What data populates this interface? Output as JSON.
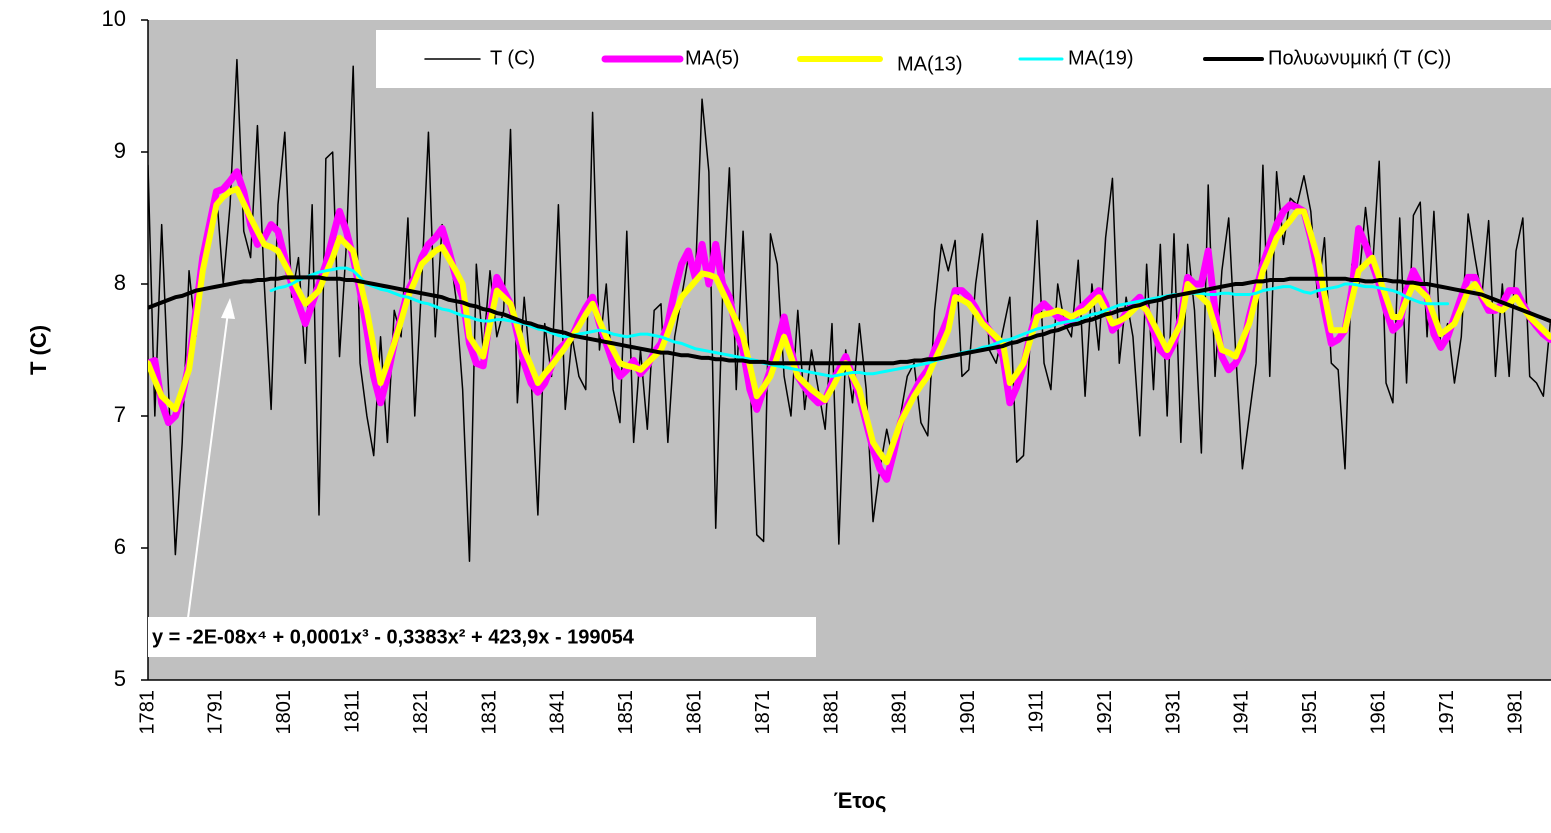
{
  "chart_data": {
    "type": "line",
    "y_label": "T (C)",
    "x_label": "Έτος",
    "annotation": "y = -2E-08x⁴ + 0,0001x³ - 0,3383x² + 423,9x - 199054",
    "legend": "top",
    "grid": false,
    "plot_background": "#c0c0c0",
    "ylim": [
      5,
      10
    ],
    "yticks": [
      5,
      6,
      7,
      8,
      9,
      10
    ],
    "categories": [
      "1781",
      null,
      null,
      null,
      null,
      null,
      null,
      null,
      null,
      null,
      "1791",
      null,
      null,
      null,
      null,
      null,
      null,
      null,
      null,
      null,
      "1801",
      null,
      null,
      null,
      null,
      null,
      null,
      null,
      null,
      null,
      "1811",
      null,
      null,
      null,
      null,
      null,
      null,
      null,
      null,
      null,
      "1821",
      null,
      null,
      null,
      null,
      null,
      null,
      null,
      null,
      null,
      "1831",
      null,
      null,
      null,
      null,
      null,
      null,
      null,
      null,
      null,
      "1841",
      null,
      null,
      null,
      null,
      null,
      null,
      null,
      null,
      null,
      "1851",
      null,
      null,
      null,
      null,
      null,
      null,
      null,
      null,
      null,
      "1861",
      null,
      null,
      null,
      null,
      null,
      null,
      null,
      null,
      null,
      "1871",
      null,
      null,
      null,
      null,
      null,
      null,
      null,
      null,
      null,
      "1881",
      null,
      null,
      null,
      null,
      null,
      null,
      null,
      null,
      null,
      "1891",
      null,
      null,
      null,
      null,
      null,
      null,
      null,
      null,
      null,
      "1901",
      null,
      null,
      null,
      null,
      null,
      null,
      null,
      null,
      null,
      "1911",
      null,
      null,
      null,
      null,
      null,
      null,
      null,
      null,
      null,
      "1921",
      null,
      null,
      null,
      null,
      null,
      null,
      null,
      null,
      null,
      "1931",
      null,
      null,
      null,
      null,
      null,
      null,
      null,
      null,
      null,
      "1941",
      null,
      null,
      null,
      null,
      null,
      null,
      null,
      null,
      null,
      "1951",
      null,
      null,
      null,
      null,
      null,
      null,
      null,
      null,
      null,
      "1961",
      null,
      null,
      null,
      null,
      null,
      null,
      null,
      null,
      null,
      "1971",
      null,
      null,
      null,
      null,
      null,
      null,
      null,
      null,
      null,
      "1981",
      null,
      null,
      null,
      null,
      null
    ],
    "series": [
      {
        "name": "T (C)",
        "color": "#000000",
        "width": 1.5,
        "values": [
          8.9,
          7.0,
          8.45,
          7.2,
          5.95,
          6.8,
          8.1,
          7.6,
          8.2,
          8.5,
          8.7,
          8.0,
          8.6,
          9.7,
          8.4,
          8.2,
          9.2,
          8.0,
          7.05,
          8.6,
          9.15,
          7.9,
          8.2,
          7.4,
          8.6,
          6.25,
          8.95,
          9.0,
          7.45,
          8.3,
          9.65,
          7.4,
          7.0,
          6.7,
          7.6,
          6.8,
          7.8,
          7.6,
          8.5,
          7.0,
          8.0,
          9.15,
          7.6,
          8.45,
          8.3,
          7.9,
          7.2,
          5.9,
          8.15,
          7.5,
          8.1,
          7.6,
          7.8,
          9.17,
          7.1,
          7.9,
          7.3,
          6.25,
          7.7,
          7.3,
          8.6,
          7.05,
          7.6,
          7.3,
          7.2,
          9.3,
          7.5,
          8.0,
          7.2,
          6.95,
          8.4,
          6.8,
          7.5,
          6.9,
          7.8,
          7.85,
          6.8,
          7.6,
          7.9,
          8.2,
          8.0,
          9.4,
          8.85,
          6.15,
          7.9,
          8.88,
          7.2,
          8.4,
          7.3,
          6.1,
          6.05,
          8.38,
          8.15,
          7.3,
          7.0,
          7.8,
          7.05,
          7.5,
          7.2,
          6.9,
          7.7,
          6.03,
          7.5,
          7.1,
          7.7,
          7.2,
          6.2,
          6.6,
          6.9,
          6.65,
          7.0,
          7.3,
          7.4,
          6.95,
          6.85,
          7.8,
          8.3,
          8.1,
          8.33,
          7.3,
          7.35,
          8.0,
          8.38,
          7.5,
          7.4,
          7.65,
          7.9,
          6.65,
          6.7,
          7.6,
          8.48,
          7.4,
          7.2,
          8.0,
          7.7,
          7.6,
          8.18,
          7.15,
          8.0,
          7.5,
          8.35,
          8.8,
          7.4,
          7.9,
          7.6,
          6.85,
          8.15,
          7.2,
          8.3,
          7.0,
          8.38,
          6.8,
          8.3,
          7.8,
          6.72,
          8.75,
          7.3,
          8.1,
          8.5,
          7.5,
          6.6,
          7.0,
          7.4,
          8.9,
          7.3,
          8.85,
          8.3,
          8.65,
          8.6,
          8.82,
          8.55,
          7.9,
          8.35,
          7.4,
          7.35,
          6.6,
          8.15,
          8.0,
          8.58,
          8.1,
          8.93,
          7.25,
          7.1,
          8.5,
          7.25,
          8.52,
          8.62,
          7.6,
          8.55,
          7.5,
          7.7,
          7.25,
          7.6,
          8.53,
          8.2,
          7.9,
          8.48,
          7.3,
          8.0,
          7.3,
          8.25,
          8.5,
          7.3,
          7.25,
          7.15,
          7.7
        ]
      },
      {
        "name": "MA(5)",
        "color": "#ff00ff",
        "width": 7,
        "values": [
          7.4,
          7.42,
          7.1,
          6.95,
          7.0,
          7.15,
          7.4,
          7.8,
          8.2,
          8.45,
          8.7,
          8.72,
          8.78,
          8.85,
          8.7,
          8.45,
          8.3,
          8.35,
          8.45,
          8.4,
          8.2,
          8.0,
          7.85,
          7.7,
          7.85,
          8.0,
          8.15,
          8.35,
          8.55,
          8.4,
          8.2,
          7.95,
          7.65,
          7.3,
          7.1,
          7.3,
          7.55,
          7.75,
          7.95,
          8.05,
          8.2,
          8.3,
          8.35,
          8.42,
          8.25,
          8.05,
          7.9,
          7.55,
          7.4,
          7.38,
          7.75,
          8.05,
          7.95,
          7.85,
          7.62,
          7.4,
          7.25,
          7.18,
          7.25,
          7.38,
          7.5,
          7.55,
          7.6,
          7.72,
          7.82,
          7.9,
          7.7,
          7.55,
          7.4,
          7.3,
          7.35,
          7.42,
          7.32,
          7.38,
          7.48,
          7.55,
          7.7,
          7.95,
          8.15,
          8.25,
          8.05,
          8.3,
          8.0,
          8.3,
          8.0,
          7.9,
          7.65,
          7.5,
          7.2,
          7.05,
          7.2,
          7.35,
          7.55,
          7.75,
          7.5,
          7.3,
          7.22,
          7.15,
          7.1,
          7.12,
          7.25,
          7.35,
          7.45,
          7.3,
          7.15,
          6.95,
          6.75,
          6.6,
          6.52,
          6.72,
          6.95,
          7.08,
          7.18,
          7.28,
          7.35,
          7.5,
          7.62,
          7.75,
          7.95,
          7.95,
          7.9,
          7.82,
          7.72,
          7.65,
          7.58,
          7.45,
          7.1,
          7.22,
          7.38,
          7.62,
          7.8,
          7.85,
          7.8,
          7.75,
          7.72,
          7.7,
          7.8,
          7.85,
          7.9,
          7.95,
          7.85,
          7.65,
          7.7,
          7.78,
          7.85,
          7.9,
          7.8,
          7.65,
          7.5,
          7.45,
          7.55,
          7.75,
          8.05,
          8.0,
          8.0,
          8.25,
          7.8,
          7.45,
          7.35,
          7.4,
          7.5,
          7.75,
          7.95,
          8.15,
          8.3,
          8.45,
          8.55,
          8.6,
          8.58,
          8.55,
          8.35,
          8.1,
          7.8,
          7.55,
          7.58,
          7.65,
          7.95,
          8.42,
          8.3,
          8.15,
          8.0,
          7.8,
          7.65,
          7.7,
          7.95,
          8.1,
          8.0,
          7.9,
          7.62,
          7.52,
          7.6,
          7.75,
          7.9,
          8.05,
          8.05,
          7.9,
          7.8,
          7.8,
          7.85,
          7.95,
          7.95,
          7.85,
          7.75,
          7.68,
          7.62,
          7.58
        ]
      },
      {
        "name": "MA(13)",
        "color": "#ffff00",
        "width": 6,
        "values": [
          7.4,
          7.27,
          7.15,
          7.1,
          7.05,
          7.2,
          7.35,
          7.72,
          8.1,
          8.35,
          8.6,
          8.66,
          8.7,
          8.72,
          8.61,
          8.5,
          8.4,
          8.3,
          8.28,
          8.25,
          8.15,
          8.05,
          7.95,
          7.85,
          7.9,
          7.95,
          8.08,
          8.2,
          8.35,
          8.3,
          8.25,
          8.02,
          7.8,
          7.52,
          7.25,
          7.4,
          7.55,
          7.72,
          7.9,
          8.02,
          8.15,
          8.2,
          8.25,
          8.28,
          8.19,
          8.1,
          8.0,
          7.6,
          7.52,
          7.45,
          7.7,
          7.95,
          7.9,
          7.85,
          7.68,
          7.5,
          7.38,
          7.25,
          7.32,
          7.38,
          7.45,
          7.52,
          7.6,
          7.68,
          7.77,
          7.85,
          7.72,
          7.6,
          7.5,
          7.4,
          7.38,
          7.37,
          7.35,
          7.4,
          7.45,
          7.5,
          7.63,
          7.77,
          7.9,
          7.96,
          8.02,
          8.08,
          8.07,
          8.05,
          7.94,
          7.83,
          7.72,
          7.6,
          7.38,
          7.15,
          7.22,
          7.3,
          7.45,
          7.6,
          7.45,
          7.3,
          7.25,
          7.2,
          7.16,
          7.12,
          7.21,
          7.31,
          7.4,
          7.3,
          7.2,
          7.0,
          6.8,
          6.72,
          6.65,
          6.8,
          6.95,
          7.05,
          7.15,
          7.23,
          7.3,
          7.42,
          7.53,
          7.65,
          7.9,
          7.88,
          7.85,
          7.78,
          7.7,
          7.65,
          7.6,
          7.55,
          7.25,
          7.32,
          7.4,
          7.58,
          7.75,
          7.77,
          7.78,
          7.8,
          7.78,
          7.75,
          7.78,
          7.8,
          7.85,
          7.9,
          7.8,
          7.7,
          7.72,
          7.75,
          7.8,
          7.85,
          7.8,
          7.7,
          7.6,
          7.5,
          7.6,
          7.7,
          8.0,
          7.95,
          7.9,
          7.85,
          7.68,
          7.5,
          7.48,
          7.45,
          7.58,
          7.7,
          7.9,
          8.1,
          8.22,
          8.35,
          8.42,
          8.48,
          8.55,
          8.55,
          8.38,
          8.2,
          7.92,
          7.65,
          7.65,
          7.65,
          7.88,
          8.1,
          8.15,
          8.2,
          8.05,
          7.9,
          7.75,
          7.75,
          7.88,
          8.0,
          7.95,
          7.9,
          7.76,
          7.62,
          7.66,
          7.7,
          7.82,
          7.95,
          8.0,
          7.92,
          7.85,
          7.82,
          7.8,
          7.85,
          7.9,
          7.82,
          7.75,
          7.7,
          7.65,
          7.6
        ]
      },
      {
        "name": "MA(19)",
        "color": "#00ffff",
        "width": 3,
        "values": [
          null,
          null,
          null,
          null,
          null,
          null,
          null,
          null,
          null,
          null,
          null,
          null,
          null,
          null,
          null,
          null,
          null,
          null,
          7.95,
          7.97,
          7.98,
          8.0,
          8.03,
          8.05,
          8.07,
          8.09,
          8.1,
          8.11,
          8.12,
          8.12,
          8.1,
          8.05,
          8.0,
          7.98,
          7.96,
          7.95,
          7.93,
          7.91,
          7.9,
          7.88,
          7.86,
          7.85,
          7.83,
          7.81,
          7.8,
          7.78,
          7.76,
          7.75,
          7.73,
          7.72,
          7.72,
          7.73,
          7.73,
          7.72,
          7.71,
          7.7,
          7.68,
          7.66,
          7.65,
          7.63,
          7.61,
          7.6,
          7.61,
          7.62,
          7.63,
          7.64,
          7.65,
          7.64,
          7.62,
          7.61,
          7.6,
          7.61,
          7.62,
          7.62,
          7.61,
          7.6,
          7.58,
          7.56,
          7.55,
          7.53,
          7.51,
          7.5,
          7.49,
          7.48,
          7.47,
          7.46,
          7.45,
          7.44,
          7.43,
          7.42,
          7.4,
          7.39,
          7.38,
          7.37,
          7.36,
          7.35,
          7.34,
          7.33,
          7.32,
          7.31,
          7.3,
          7.31,
          7.32,
          7.33,
          7.33,
          7.32,
          7.32,
          7.33,
          7.34,
          7.35,
          7.36,
          7.37,
          7.38,
          7.39,
          7.4,
          7.42,
          7.43,
          7.45,
          7.46,
          7.48,
          7.49,
          7.5,
          7.52,
          7.53,
          7.55,
          7.57,
          7.58,
          7.6,
          7.62,
          7.64,
          7.66,
          7.67,
          7.68,
          7.7,
          7.71,
          7.72,
          7.73,
          7.75,
          7.77,
          7.78,
          7.8,
          7.82,
          7.84,
          7.85,
          7.86,
          7.87,
          7.88,
          7.89,
          7.9,
          7.91,
          7.92,
          7.92,
          7.93,
          7.93,
          7.93,
          7.92,
          7.92,
          7.93,
          7.93,
          7.92,
          7.92,
          7.92,
          7.93,
          7.95,
          7.96,
          7.97,
          7.98,
          7.98,
          7.96,
          7.94,
          7.93,
          7.95,
          7.96,
          7.97,
          7.98,
          8.0,
          8.0,
          7.99,
          7.98,
          7.98,
          7.97,
          7.96,
          7.95,
          7.93,
          7.9,
          7.88,
          7.86,
          7.85,
          7.85,
          7.85,
          7.85,
          null,
          null,
          null,
          null,
          null,
          null,
          null,
          null,
          null,
          null,
          null,
          null,
          null,
          null,
          null
        ]
      },
      {
        "name": "Πολυωνυμική (T (C))",
        "color": "#000000",
        "width": 4,
        "values": [
          7.82,
          7.84,
          7.86,
          7.88,
          7.9,
          7.91,
          7.93,
          7.95,
          7.96,
          7.97,
          7.98,
          7.99,
          8.0,
          8.01,
          8.02,
          8.02,
          8.03,
          8.03,
          8.04,
          8.04,
          8.05,
          8.05,
          8.05,
          8.05,
          8.05,
          8.05,
          8.04,
          8.04,
          8.04,
          8.03,
          8.03,
          8.02,
          8.01,
          8.0,
          7.99,
          7.98,
          7.97,
          7.96,
          7.95,
          7.94,
          7.93,
          7.92,
          7.91,
          7.9,
          7.88,
          7.87,
          7.86,
          7.84,
          7.83,
          7.81,
          7.8,
          7.78,
          7.77,
          7.75,
          7.73,
          7.71,
          7.7,
          7.68,
          7.67,
          7.65,
          7.64,
          7.63,
          7.61,
          7.6,
          7.59,
          7.58,
          7.57,
          7.56,
          7.55,
          7.54,
          7.53,
          7.52,
          7.51,
          7.5,
          7.49,
          7.48,
          7.48,
          7.47,
          7.46,
          7.46,
          7.45,
          7.44,
          7.44,
          7.43,
          7.43,
          7.42,
          7.42,
          7.42,
          7.41,
          7.41,
          7.41,
          7.4,
          7.4,
          7.4,
          7.4,
          7.4,
          7.4,
          7.4,
          7.4,
          7.4,
          7.4,
          7.4,
          7.4,
          7.4,
          7.4,
          7.4,
          7.4,
          7.4,
          7.4,
          7.4,
          7.41,
          7.41,
          7.42,
          7.42,
          7.43,
          7.43,
          7.44,
          7.45,
          7.46,
          7.47,
          7.48,
          7.49,
          7.5,
          7.51,
          7.52,
          7.53,
          7.55,
          7.56,
          7.58,
          7.59,
          7.61,
          7.62,
          7.64,
          7.65,
          7.67,
          7.69,
          7.7,
          7.72,
          7.73,
          7.75,
          7.77,
          7.78,
          7.8,
          7.81,
          7.83,
          7.84,
          7.86,
          7.87,
          7.88,
          7.9,
          7.91,
          7.92,
          7.93,
          7.94,
          7.95,
          7.96,
          7.97,
          7.98,
          7.99,
          8.0,
          8.0,
          8.01,
          8.02,
          8.02,
          8.03,
          8.03,
          8.03,
          8.04,
          8.04,
          8.04,
          8.04,
          8.04,
          8.04,
          8.04,
          8.04,
          8.04,
          8.03,
          8.03,
          8.02,
          8.02,
          8.03,
          8.03,
          8.02,
          8.02,
          8.01,
          8.01,
          8.0,
          8.0,
          7.99,
          7.98,
          7.97,
          7.96,
          7.95,
          7.94,
          7.93,
          7.92,
          7.9,
          7.88,
          7.86,
          7.84,
          7.82,
          7.8,
          7.78,
          7.76,
          7.74,
          7.72
        ]
      }
    ]
  }
}
